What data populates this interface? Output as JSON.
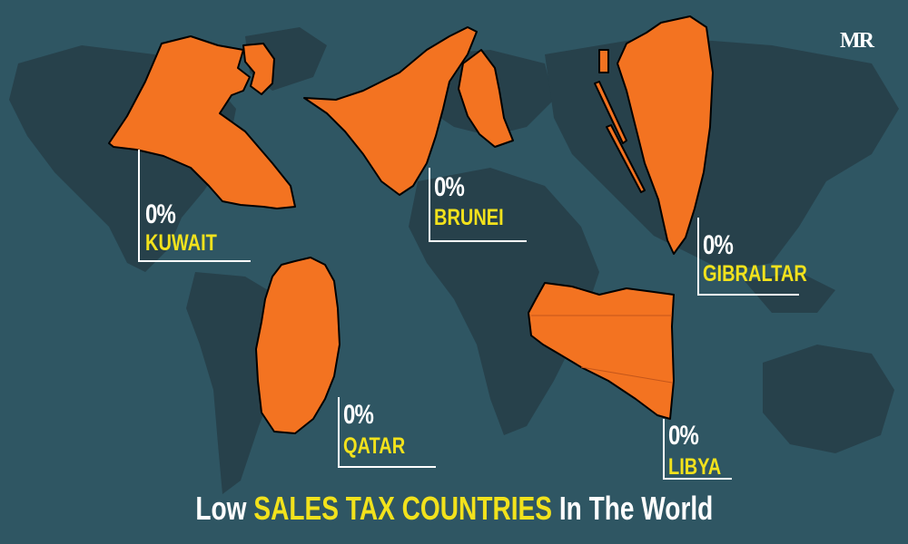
{
  "logo": "MR",
  "title": {
    "part1": "Low",
    "part2": "SALES TAX COUNTRIES",
    "part3": "In The World"
  },
  "countries": [
    {
      "name": "KUWAIT",
      "rate": "0%"
    },
    {
      "name": "BRUNEI",
      "rate": "0%"
    },
    {
      "name": "GIBRALTAR",
      "rate": "0%"
    },
    {
      "name": "QATAR",
      "rate": "0%"
    },
    {
      "name": "LIBYA",
      "rate": "0%"
    }
  ],
  "colors": {
    "background": "#2f5663",
    "world_land": "#27414b",
    "country_fill": "#f37321",
    "accent_text": "#f2e21c"
  }
}
